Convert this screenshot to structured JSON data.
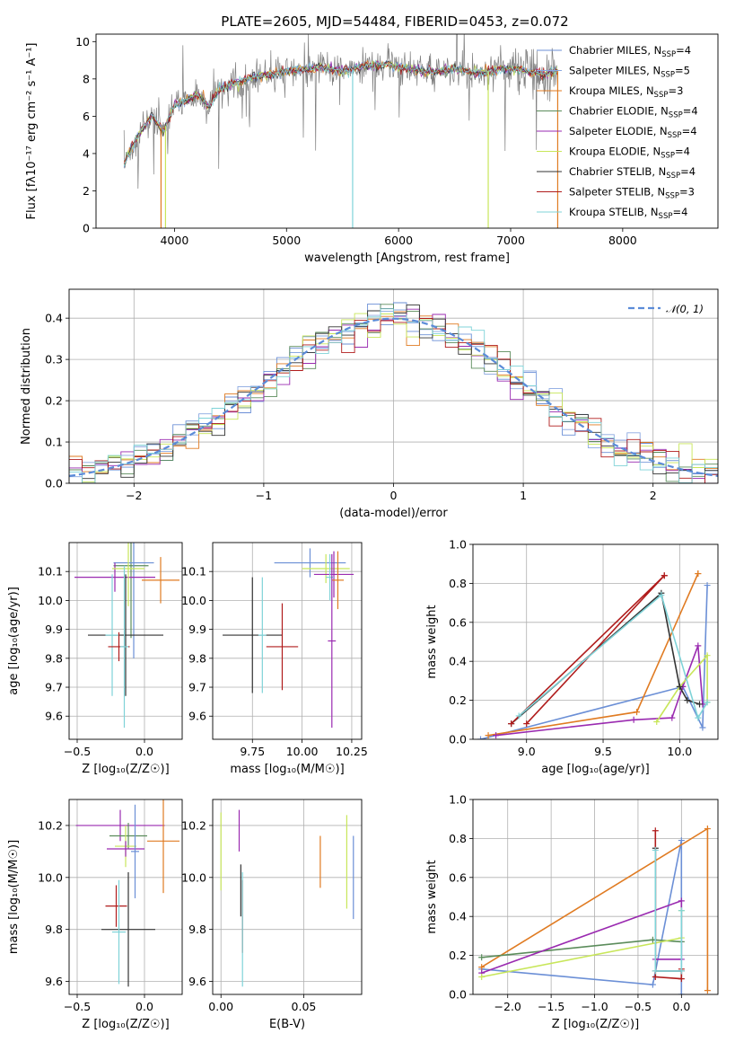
{
  "figure": {
    "title": "PLATE=2605, MJD=54484, FIBERID=0453, z=0.072"
  },
  "models": [
    {
      "name": "Chabrier MILES",
      "nssp": "4",
      "color": "#6b8fd6"
    },
    {
      "name": "Salpeter MILES",
      "nssp": "5",
      "color": "#8aa8e0"
    },
    {
      "name": "Kroupa MILES",
      "nssp": "3",
      "color": "#e07b22"
    },
    {
      "name": "Chabrier ELODIE",
      "nssp": "4",
      "color": "#5b8c5b"
    },
    {
      "name": "Salpeter ELODIE",
      "nssp": "4",
      "color": "#9a2ab0"
    },
    {
      "name": "Kroupa ELODIE",
      "nssp": "4",
      "color": "#c8e65a"
    },
    {
      "name": "Chabrier STELIB",
      "nssp": "4",
      "color": "#333333"
    },
    {
      "name": "Salpeter STELIB",
      "nssp": "3",
      "color": "#b01c1c"
    },
    {
      "name": "Kroupa STELIB",
      "nssp": "4",
      "color": "#7fd3d8"
    }
  ],
  "chart_data": [
    {
      "id": "spectrum",
      "type": "line",
      "xlabel": "wavelength [Angstrom, rest frame]",
      "ylabel": "Flux [fλ10⁻¹⁷ erg cm⁻² s⁻¹ A⁻¹]",
      "xlim": [
        3300,
        8850
      ],
      "ylim": [
        0,
        10.4
      ],
      "xticks": [
        4000,
        5000,
        6000,
        7000,
        8000
      ],
      "yticks": [
        0,
        2,
        4,
        6,
        8,
        10
      ],
      "data_color": "#808080",
      "model_x": [
        3550,
        3700,
        3800,
        3900,
        4000,
        4100,
        4200,
        4300,
        4400,
        4500,
        4700,
        4900,
        5100,
        5300,
        5500,
        5700,
        5900,
        6100,
        6300,
        6500,
        6700,
        6900,
        7100,
        7300,
        7420
      ],
      "model_y": [
        3.5,
        5.2,
        6.0,
        5.2,
        6.6,
        6.8,
        7.2,
        6.5,
        7.4,
        7.7,
        8.1,
        8.3,
        8.5,
        8.6,
        8.4,
        8.7,
        8.8,
        8.5,
        8.4,
        8.5,
        8.3,
        8.5,
        8.5,
        8.2,
        8.5
      ]
    },
    {
      "id": "residuals",
      "type": "step",
      "xlabel": "(data-model)/error",
      "ylabel": "Normed distribution",
      "xlim": [
        -2.5,
        2.5
      ],
      "ylim": [
        0,
        0.47
      ],
      "xticks": [
        -2,
        -1,
        0,
        1,
        2
      ],
      "yticks": [
        0.0,
        0.1,
        0.2,
        0.3,
        0.4
      ],
      "legend": "𝒩(0, 1)",
      "gauss_color": "#5b8bd8"
    },
    {
      "id": "age_vs_Z",
      "type": "errorbar",
      "xlabel": "Z [log₁₀(Z/Z☉)]",
      "ylabel": "age  [log₁₀(age/yr)]",
      "xlim": [
        -0.56,
        0.28
      ],
      "ylim": [
        9.52,
        10.2
      ],
      "xticks": [
        -0.5,
        0.0
      ],
      "yticks": [
        9.6,
        9.7,
        9.8,
        9.9,
        10.0,
        10.1
      ],
      "points": [
        {
          "c": 3,
          "x": -0.1,
          "y": 10.12,
          "ex": 0.13,
          "ey": 0.25
        },
        {
          "c": 0,
          "x": -0.08,
          "y": 10.13,
          "ex": 0.15,
          "ey": 0.33
        },
        {
          "c": 4,
          "x": -0.22,
          "y": 10.08,
          "ex": 0.3,
          "ey": 0.05
        },
        {
          "c": 5,
          "x": -0.12,
          "y": 10.11,
          "ex": 0.12,
          "ey": 0.13
        },
        {
          "c": 2,
          "x": 0.12,
          "y": 10.07,
          "ex": 0.14,
          "ey": 0.08
        },
        {
          "c": 6,
          "x": -0.14,
          "y": 9.88,
          "ex": 0.28,
          "ey": 0.21
        },
        {
          "c": 8,
          "x": -0.24,
          "y": 9.88,
          "ex": 0.05,
          "ey": 0.21
        },
        {
          "c": 7,
          "x": -0.19,
          "y": 9.84,
          "ex": 0.08,
          "ey": 0.05
        },
        {
          "c": 8,
          "x": -0.15,
          "y": 9.84,
          "ex": 0.03,
          "ey": 0.28
        }
      ]
    },
    {
      "id": "age_vs_mass",
      "type": "errorbar",
      "xlabel": "mass [log₁₀(M/M☉)]",
      "ylabel": "",
      "xlim": [
        9.55,
        10.3
      ],
      "ylim": [
        9.52,
        10.2
      ],
      "xticks": [
        9.75,
        10.0,
        10.25
      ],
      "yticks": [
        9.6,
        9.7,
        9.8,
        9.9,
        10.0,
        10.1
      ],
      "points": [
        {
          "c": 0,
          "x": 10.04,
          "y": 10.13,
          "ex": 0.18,
          "ey": 0.05
        },
        {
          "c": 5,
          "x": 10.12,
          "y": 10.11,
          "ex": 0.12,
          "ey": 0.05
        },
        {
          "c": 4,
          "x": 10.16,
          "y": 10.09,
          "ex": 0.1,
          "ey": 0.08
        },
        {
          "c": 2,
          "x": 10.18,
          "y": 10.07,
          "ex": 0.03,
          "ey": 0.1
        },
        {
          "c": 8,
          "x": 10.14,
          "y": 10.08,
          "ex": 0.02,
          "ey": 0.08
        },
        {
          "c": 4,
          "x": 10.15,
          "y": 9.86,
          "ex": 0.02,
          "ey": 0.3
        },
        {
          "c": 6,
          "x": 9.75,
          "y": 9.88,
          "ex": 0.15,
          "ey": 0.2
        },
        {
          "c": 8,
          "x": 9.8,
          "y": 9.88,
          "ex": 0.02,
          "ey": 0.2
        },
        {
          "c": 7,
          "x": 9.9,
          "y": 9.84,
          "ex": 0.08,
          "ey": 0.15
        }
      ]
    },
    {
      "id": "weight_vs_age",
      "type": "line",
      "xlabel": "age  [log₁₀(age/yr)]",
      "ylabel": "mass weight",
      "xlim": [
        8.65,
        10.25
      ],
      "ylim": [
        0,
        1
      ],
      "xticks": [
        9.0,
        9.5,
        10.0
      ],
      "yticks": [
        0.0,
        0.2,
        0.4,
        0.6,
        0.8,
        1.0
      ],
      "series": [
        {
          "c": 0,
          "x": [
            10.18,
            10.15,
            10.02,
            8.7
          ],
          "y": [
            0.79,
            0.06,
            0.27,
            0.0
          ]
        },
        {
          "c": 2,
          "x": [
            8.75,
            9.72,
            10.12,
            10.12
          ],
          "y": [
            0.02,
            0.14,
            0.85,
            0.85
          ]
        },
        {
          "c": 4,
          "x": [
            8.8,
            9.7,
            9.95,
            10.02,
            10.12,
            10.15
          ],
          "y": [
            0.02,
            0.1,
            0.11,
            0.27,
            0.48,
            0.18
          ]
        },
        {
          "c": 5,
          "x": [
            9.85,
            10.0,
            10.18,
            10.18
          ],
          "y": [
            0.09,
            0.27,
            0.43,
            0.19
          ]
        },
        {
          "c": 6,
          "x": [
            8.9,
            9.88,
            10.0,
            10.05,
            10.13
          ],
          "y": [
            0.08,
            0.75,
            0.27,
            0.2,
            0.18
          ]
        },
        {
          "c": 7,
          "x": [
            8.9,
            9.9,
            9.9,
            9.0
          ],
          "y": [
            0.08,
            0.84,
            0.84,
            0.08
          ]
        },
        {
          "c": 8,
          "x": [
            8.95,
            9.88,
            10.12,
            10.18
          ],
          "y": [
            0.12,
            0.74,
            0.11,
            0.19
          ]
        }
      ]
    },
    {
      "id": "mass_vs_Z",
      "type": "errorbar",
      "xlabel": "Z [log₁₀(Z/Z☉)]",
      "ylabel": "mass [log₁₀(M/M☉)]",
      "xlim": [
        -0.56,
        0.28
      ],
      "ylim": [
        9.55,
        10.3
      ],
      "xticks": [
        -0.5,
        0.0
      ],
      "yticks": [
        9.6,
        9.8,
        10.0,
        10.2
      ],
      "points": [
        {
          "c": 4,
          "x": -0.18,
          "y": 10.2,
          "ex": 0.33,
          "ey": 0.06
        },
        {
          "c": 3,
          "x": -0.12,
          "y": 10.16,
          "ex": 0.14,
          "ey": 0.05
        },
        {
          "c": 2,
          "x": 0.14,
          "y": 10.14,
          "ex": 0.12,
          "ey": 0.2
        },
        {
          "c": 5,
          "x": -0.14,
          "y": 10.12,
          "ex": 0.08,
          "ey": 0.08
        },
        {
          "c": 4,
          "x": -0.14,
          "y": 10.11,
          "ex": 0.14,
          "ey": 0.03
        },
        {
          "c": 0,
          "x": -0.07,
          "y": 10.1,
          "ex": 0.03,
          "ey": 0.18
        },
        {
          "c": 7,
          "x": -0.21,
          "y": 9.89,
          "ex": 0.08,
          "ey": 0.08
        },
        {
          "c": 6,
          "x": -0.12,
          "y": 9.8,
          "ex": 0.2,
          "ey": 0.22
        },
        {
          "c": 8,
          "x": -0.19,
          "y": 9.79,
          "ex": 0.05,
          "ey": 0.2
        }
      ]
    },
    {
      "id": "mass_vs_EBV",
      "type": "errorbar",
      "xlabel": "E(B-V)",
      "ylabel": "",
      "xlim": [
        -0.005,
        0.085
      ],
      "ylim": [
        9.55,
        10.3
      ],
      "xticks": [
        0.0,
        0.05
      ],
      "yticks": [
        9.6,
        9.8,
        10.0,
        10.2
      ],
      "points": [
        {
          "c": 5,
          "x": 0.0,
          "y": 10.1,
          "ex": 0.0,
          "ey": 0.15
        },
        {
          "c": 4,
          "x": 0.011,
          "y": 10.18,
          "ex": 0.0,
          "ey": 0.08
        },
        {
          "c": 7,
          "x": 0.013,
          "y": 9.85,
          "ex": 0.0,
          "ey": 0.14
        },
        {
          "c": 8,
          "x": 0.013,
          "y": 9.8,
          "ex": 0.0,
          "ey": 0.22
        },
        {
          "c": 6,
          "x": 0.012,
          "y": 9.95,
          "ex": 0.0,
          "ey": 0.1
        },
        {
          "c": 2,
          "x": 0.06,
          "y": 10.06,
          "ex": 0.0,
          "ey": 0.1
        },
        {
          "c": 5,
          "x": 0.076,
          "y": 10.06,
          "ex": 0.0,
          "ey": 0.18
        },
        {
          "c": 0,
          "x": 0.08,
          "y": 10.0,
          "ex": 0.0,
          "ey": 0.16
        }
      ]
    },
    {
      "id": "weight_vs_Z",
      "type": "line",
      "xlabel": "Z [log₁₀(Z/Z☉)]",
      "ylabel": "mass weight",
      "xlim": [
        -2.4,
        0.42
      ],
      "ylim": [
        0,
        1
      ],
      "xticks": [
        -2.0,
        -1.5,
        -1.0,
        -0.5,
        0.0
      ],
      "yticks": [
        0.0,
        0.2,
        0.4,
        0.6,
        0.8,
        1.0
      ],
      "series": [
        {
          "c": 0,
          "x": [
            -2.3,
            -0.33,
            0.0,
            0.0
          ],
          "y": [
            0.13,
            0.05,
            0.79,
            0.0
          ]
        },
        {
          "c": 2,
          "x": [
            -2.3,
            0.3,
            0.3
          ],
          "y": [
            0.14,
            0.85,
            0.02
          ]
        },
        {
          "c": 3,
          "x": [
            -2.3,
            -0.33,
            0.0
          ],
          "y": [
            0.19,
            0.28,
            0.27
          ]
        },
        {
          "c": 4,
          "x": [
            -2.3,
            0.0,
            0.0,
            -0.3
          ],
          "y": [
            0.11,
            0.48,
            0.18,
            0.18
          ]
        },
        {
          "c": 5,
          "x": [
            -2.3,
            0.0,
            0.0
          ],
          "y": [
            0.09,
            0.29,
            0.43
          ]
        },
        {
          "c": 6,
          "x": [
            -0.3,
            -0.3,
            0.0
          ],
          "y": [
            0.75,
            0.12,
            0.12
          ]
        },
        {
          "c": 7,
          "x": [
            -0.3,
            -0.3,
            0.0,
            0.0
          ],
          "y": [
            0.84,
            0.09,
            0.08,
            0.13
          ]
        },
        {
          "c": 8,
          "x": [
            -0.3,
            -0.3,
            0.0,
            0.0
          ],
          "y": [
            0.74,
            0.12,
            0.12,
            0.43
          ]
        }
      ]
    }
  ]
}
